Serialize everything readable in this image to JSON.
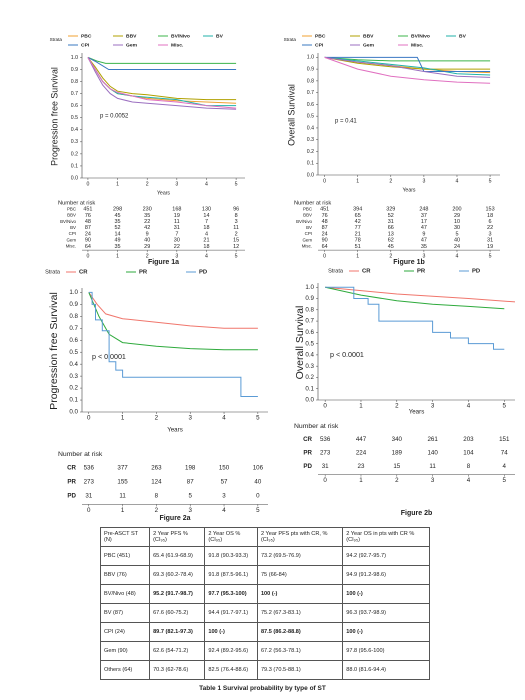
{
  "chart_data": [
    {
      "type": "line",
      "title": "Figure 1a",
      "ylabel": "Progression free Survival",
      "xlabel": "Years",
      "annotation": "p = 0.0052",
      "legend_title": "Strata",
      "risk_title": "Number at risk",
      "xlim": [
        -0.2,
        5.3
      ],
      "ylim": [
        0,
        1.02
      ],
      "xticks": [
        0,
        1,
        2,
        3,
        4,
        5
      ],
      "yticks": [
        {
          "value": 0,
          "label": "0.0"
        },
        {
          "value": 0.1,
          "label": "0.1"
        },
        {
          "value": 0.2,
          "label": "0.2"
        },
        {
          "value": 0.3,
          "label": "0.3"
        },
        {
          "value": 0.4,
          "label": "0.4"
        },
        {
          "value": 0.5,
          "label": "0.5"
        },
        {
          "value": 0.6,
          "label": "0.6"
        },
        {
          "value": 0.7,
          "label": "0.7"
        },
        {
          "value": 0.8,
          "label": "0.8"
        },
        {
          "value": 0.9,
          "label": "0.9"
        },
        {
          "value": 1,
          "label": "1.0"
        }
      ],
      "series": [
        {
          "name": "PBC",
          "color": "#f0a030",
          "x": [
            0,
            0.25,
            0.5,
            0.75,
            1,
            1.5,
            2,
            3,
            4,
            5
          ],
          "values": [
            1,
            0.9,
            0.8,
            0.74,
            0.7,
            0.68,
            0.66,
            0.64,
            0.63,
            0.62
          ],
          "at_risk": [
            451,
            298,
            230,
            168,
            130,
            96
          ]
        },
        {
          "name": "BBV",
          "color": "#b0a000",
          "x": [
            0,
            0.25,
            0.5,
            0.75,
            1,
            1.5,
            2,
            3,
            4,
            5
          ],
          "values": [
            1,
            0.92,
            0.83,
            0.76,
            0.72,
            0.7,
            0.69,
            0.66,
            0.65,
            0.65
          ],
          "at_risk": [
            76,
            45,
            35,
            19,
            14,
            8
          ]
        },
        {
          "name": "BV/Nivo",
          "color": "#3cb44b",
          "x": [
            0,
            0.3,
            0.6,
            1,
            2,
            3,
            4,
            5
          ],
          "values": [
            1,
            0.97,
            0.95,
            0.95,
            0.95,
            0.95,
            0.95,
            0.95
          ],
          "at_risk": [
            48,
            35,
            22,
            11,
            7,
            3
          ]
        },
        {
          "name": "BV",
          "color": "#20b2aa",
          "x": [
            0,
            0.25,
            0.5,
            0.75,
            1,
            1.5,
            2,
            3,
            4,
            5
          ],
          "values": [
            1,
            0.9,
            0.8,
            0.74,
            0.7,
            0.68,
            0.67,
            0.65,
            0.6,
            0.6
          ],
          "at_risk": [
            87,
            52,
            42,
            31,
            18,
            11
          ]
        },
        {
          "name": "CPI",
          "color": "#3a78c2",
          "x": [
            0,
            0.3,
            0.7,
            1,
            2,
            3,
            4,
            5
          ],
          "values": [
            1,
            0.96,
            0.9,
            0.9,
            0.9,
            0.9,
            0.9,
            0.9
          ],
          "at_risk": [
            24,
            14,
            9,
            7,
            4,
            2
          ]
        },
        {
          "name": "Gem",
          "color": "#9b6fc0",
          "x": [
            0,
            0.25,
            0.5,
            0.75,
            1,
            1.5,
            2,
            3,
            4,
            5
          ],
          "values": [
            1,
            0.88,
            0.77,
            0.7,
            0.66,
            0.63,
            0.62,
            0.6,
            0.58,
            0.57
          ],
          "at_risk": [
            90,
            49,
            40,
            30,
            21,
            15
          ]
        },
        {
          "name": "Misc.",
          "color": "#e070c0",
          "x": [
            0,
            0.25,
            0.5,
            0.75,
            1,
            1.5,
            2,
            3,
            4,
            5
          ],
          "values": [
            1,
            0.9,
            0.8,
            0.74,
            0.71,
            0.68,
            0.65,
            0.63,
            0.6,
            0.58
          ],
          "at_risk": [
            64,
            35,
            29,
            22,
            18,
            12
          ]
        }
      ]
    },
    {
      "type": "line",
      "title": "Figure 1b",
      "ylabel": "Overall Survival",
      "xlabel": "Years",
      "annotation": "p = 0.41",
      "legend_title": "Strata",
      "risk_title": "Number at risk",
      "xlim": [
        -0.2,
        5.3
      ],
      "ylim": [
        0,
        1.02
      ],
      "xticks": [
        0,
        1,
        2,
        3,
        4,
        5
      ],
      "yticks": [
        {
          "value": 0,
          "label": "0.0"
        },
        {
          "value": 0.1,
          "label": "0.1"
        },
        {
          "value": 0.2,
          "label": "0.2"
        },
        {
          "value": 0.3,
          "label": "0.3"
        },
        {
          "value": 0.4,
          "label": "0.4"
        },
        {
          "value": 0.5,
          "label": "0.5"
        },
        {
          "value": 0.6,
          "label": "0.6"
        },
        {
          "value": 0.7,
          "label": "0.7"
        },
        {
          "value": 0.8,
          "label": "0.8"
        },
        {
          "value": 0.9,
          "label": "0.9"
        },
        {
          "value": 1,
          "label": "1.0"
        }
      ],
      "series": [
        {
          "name": "PBC",
          "color": "#f0a030",
          "x": [
            0,
            1,
            2,
            3,
            4,
            5
          ],
          "values": [
            1,
            0.96,
            0.93,
            0.9,
            0.88,
            0.87
          ],
          "at_risk": [
            451,
            394,
            329,
            248,
            200,
            153
          ]
        },
        {
          "name": "BBV",
          "color": "#b0a000",
          "x": [
            0,
            1,
            2,
            3,
            4,
            5
          ],
          "values": [
            1,
            0.95,
            0.92,
            0.9,
            0.9,
            0.9
          ],
          "at_risk": [
            76,
            65,
            52,
            37,
            29,
            18
          ]
        },
        {
          "name": "BV/Nivo",
          "color": "#3cb44b",
          "x": [
            0,
            1,
            2,
            3,
            4,
            5
          ],
          "values": [
            1,
            0.98,
            0.97,
            0.97,
            0.97,
            0.97
          ],
          "at_risk": [
            48,
            42,
            31,
            17,
            10,
            6
          ]
        },
        {
          "name": "BV",
          "color": "#20b2aa",
          "x": [
            0,
            1,
            2,
            3,
            4,
            5
          ],
          "values": [
            1,
            0.97,
            0.94,
            0.91,
            0.86,
            0.85
          ],
          "at_risk": [
            87,
            77,
            66,
            47,
            30,
            22
          ]
        },
        {
          "name": "CPI",
          "color": "#3a78c2",
          "x": [
            0,
            1,
            2,
            2.8,
            3,
            4,
            5
          ],
          "values": [
            1,
            1,
            1,
            1,
            0.88,
            0.88,
            0.88
          ],
          "at_risk": [
            24,
            21,
            13,
            9,
            5,
            3
          ]
        },
        {
          "name": "Gem",
          "color": "#9b6fc0",
          "x": [
            0,
            1,
            2,
            3,
            4,
            5
          ],
          "values": [
            1,
            0.96,
            0.93,
            0.88,
            0.84,
            0.83
          ],
          "at_risk": [
            90,
            78,
            62,
            47,
            40,
            31
          ]
        },
        {
          "name": "Misc.",
          "color": "#e070c0",
          "x": [
            0,
            1,
            2,
            3,
            4,
            5
          ],
          "values": [
            1,
            0.9,
            0.84,
            0.81,
            0.79,
            0.78
          ],
          "at_risk": [
            64,
            51,
            45,
            35,
            24,
            19
          ]
        }
      ]
    },
    {
      "type": "line",
      "title": "Figure 2a",
      "ylabel": "Progression free Survival",
      "xlabel": "Years",
      "annotation": "p < 0.0001",
      "legend_title": "Strata",
      "risk_title": "Number at risk",
      "xlim": [
        -0.2,
        5.3
      ],
      "ylim": [
        0,
        1.02
      ],
      "xticks": [
        0,
        1,
        2,
        3,
        4,
        5
      ],
      "yticks": [
        {
          "value": 0,
          "label": "0.0"
        },
        {
          "value": 0.1,
          "label": "0.1"
        },
        {
          "value": 0.2,
          "label": "0.2"
        },
        {
          "value": 0.3,
          "label": "0.3"
        },
        {
          "value": 0.4,
          "label": "0.4"
        },
        {
          "value": 0.5,
          "label": "0.5"
        },
        {
          "value": 0.6,
          "label": "0.6"
        },
        {
          "value": 0.7,
          "label": "0.7"
        },
        {
          "value": 0.8,
          "label": "0.8"
        },
        {
          "value": 0.9,
          "label": "0.9"
        },
        {
          "value": 1,
          "label": "1.0"
        }
      ],
      "series": [
        {
          "name": "CR",
          "color": "#f0766c",
          "x": [
            0,
            0.25,
            0.5,
            1,
            2,
            3,
            4,
            5
          ],
          "values": [
            1,
            0.9,
            0.82,
            0.78,
            0.75,
            0.72,
            0.7,
            0.7
          ],
          "at_risk": [
            536,
            377,
            263,
            198,
            150,
            106
          ]
        },
        {
          "name": "PR",
          "color": "#2eaa3c",
          "x": [
            0,
            0.3,
            0.6,
            1,
            2,
            3,
            4,
            5
          ],
          "values": [
            1,
            0.8,
            0.65,
            0.58,
            0.55,
            0.53,
            0.52,
            0.52
          ],
          "at_risk": [
            273,
            155,
            124,
            87,
            57,
            40
          ]
        },
        {
          "name": "PD",
          "color": "#5b9bd5",
          "x": [
            0,
            0.1,
            0.1,
            0.2,
            0.2,
            0.4,
            0.4,
            0.6,
            0.6,
            0.8,
            0.8,
            1,
            1,
            4.5,
            4.5,
            5
          ],
          "values": [
            1,
            1,
            0.9,
            0.9,
            0.77,
            0.77,
            0.68,
            0.68,
            0.42,
            0.42,
            0.35,
            0.35,
            0.29,
            0.29,
            0.13,
            0.13
          ],
          "at_risk": [
            31,
            11,
            8,
            5,
            3,
            0
          ]
        }
      ]
    },
    {
      "type": "line",
      "title": "Figure 2b",
      "ylabel": "Overall Survival",
      "xlabel": "Years",
      "annotation": "p < 0.0001",
      "legend_title": "Strata",
      "risk_title": "Number at risk",
      "xlim": [
        -0.2,
        5.3
      ],
      "ylim": [
        0,
        1.02
      ],
      "xticks": [
        0,
        1,
        2,
        3,
        4,
        5
      ],
      "yticks": [
        {
          "value": 0,
          "label": "0.0"
        },
        {
          "value": 0.1,
          "label": "0.1"
        },
        {
          "value": 0.2,
          "label": "0.2"
        },
        {
          "value": 0.3,
          "label": "0.3"
        },
        {
          "value": 0.4,
          "label": "0.4"
        },
        {
          "value": 0.5,
          "label": "0.5"
        },
        {
          "value": 0.6,
          "label": "0.6"
        },
        {
          "value": 0.7,
          "label": "0.7"
        },
        {
          "value": 0.8,
          "label": "0.8"
        },
        {
          "value": 0.9,
          "label": "0.9"
        },
        {
          "value": 1,
          "label": "1.0"
        }
      ],
      "series": [
        {
          "name": "CR",
          "color": "#f0766c",
          "x": [
            0,
            1,
            2,
            3,
            4,
            5.3
          ],
          "values": [
            1,
            0.97,
            0.94,
            0.92,
            0.9,
            0.87
          ],
          "at_risk": [
            536,
            447,
            340,
            261,
            203,
            151
          ]
        },
        {
          "name": "PR",
          "color": "#2eaa3c",
          "x": [
            0,
            1,
            2,
            3,
            4,
            5
          ],
          "values": [
            1,
            0.93,
            0.88,
            0.85,
            0.83,
            0.81
          ],
          "at_risk": [
            273,
            224,
            189,
            140,
            104,
            74
          ]
        },
        {
          "name": "PD",
          "color": "#5b9bd5",
          "x": [
            0,
            0.8,
            0.8,
            1.2,
            1.2,
            1.5,
            1.5,
            3,
            3,
            3.5,
            3.5,
            4,
            4,
            4.7,
            4.7,
            5
          ],
          "values": [
            1,
            1,
            0.9,
            0.9,
            0.85,
            0.85,
            0.7,
            0.7,
            0.6,
            0.6,
            0.55,
            0.55,
            0.5,
            0.5,
            0.45,
            0.45
          ],
          "at_risk": [
            31,
            23,
            15,
            11,
            8,
            4
          ]
        }
      ]
    }
  ],
  "table": {
    "caption": "Table 1 Survival probability by type of ST",
    "header": [
      "Pre-ASCT ST (N)",
      "2 Year PFS % (CI₉₅)",
      "2 Year OS % (CI₉₅)",
      "2 Year PFS pts with CR, % (CI₉₅)",
      "2 Year OS in pts with CR % (CI₉₅)"
    ],
    "rows": [
      {
        "cells": [
          "PBC (451)",
          "65.4 (61.9-68.9)",
          "91.8 (90.3-93.3)",
          "73.2 (69.5-76.9)",
          "94.2 (92.7-95.7)"
        ],
        "bold": false
      },
      {
        "cells": [
          "BBV (76)",
          "69.3 (60.2-78.4)",
          "91.8 (87.5-96.1)",
          "75 (66-84)",
          "94.9 (91.2-98.6)"
        ],
        "bold": false
      },
      {
        "cells": [
          "BV/Nivo (48)",
          "95.2 (91.7-98.7)",
          "97.7 (95.3-100)",
          "100 (-)",
          "100 (-)"
        ],
        "bold": true
      },
      {
        "cells": [
          "BV (87)",
          "67.6 (60-75.2)",
          "94.4 (91.7-97.1)",
          "75.2 (67.3-83.1)",
          "96.3 (93.7-98.9)"
        ],
        "bold": false
      },
      {
        "cells": [
          "CPI (24)",
          "89.7 (82.1-97.3)",
          "100 (-)",
          "87.5 (86.2-88.8)",
          "100 (-)"
        ],
        "bold": true
      },
      {
        "cells": [
          "Gem (90)",
          "62.6 (54-71.2)",
          "92.4 (89.2-95.6)",
          "67.2 (56.3-78.1)",
          "97.8 (95.6-100)"
        ],
        "bold": false
      },
      {
        "cells": [
          "Others (64)",
          "70.3 (62-78.6)",
          "82.5 (76.4-88.6)",
          "79.3 (70.5-88.1)",
          "88.0 (81.6-94.4)"
        ],
        "bold": false
      }
    ]
  }
}
